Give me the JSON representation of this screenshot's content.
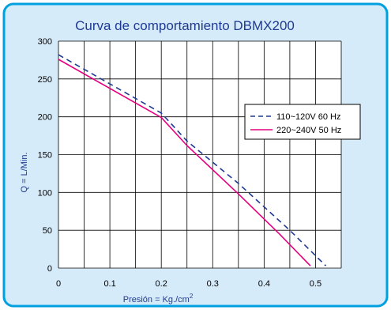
{
  "chart_data": {
    "type": "line",
    "title": "Curva de comportamiento DBMX200",
    "xlabel": "Presión = Kg./cm",
    "xlabel_sup": "2",
    "ylabel": "Q = L/Min.",
    "xlim": [
      0,
      0.55
    ],
    "ylim": [
      0,
      300
    ],
    "x_ticks": [
      "0",
      "0.1",
      "0.2",
      "0.3",
      "0.4",
      "0.5"
    ],
    "y_ticks": [
      "0",
      "50",
      "100",
      "150",
      "200",
      "250",
      "300"
    ],
    "grid": true,
    "legend_position": "right",
    "series": [
      {
        "name": "110~120V 60 Hz",
        "style": "dashed",
        "color": "#1f3a93",
        "points": [
          [
            0,
            282
          ],
          [
            0.2,
            205
          ],
          [
            0.25,
            168
          ],
          [
            0.35,
            112
          ],
          [
            0.45,
            50
          ],
          [
            0.52,
            3
          ]
        ]
      },
      {
        "name": "220~240V 50 Hz",
        "style": "solid",
        "color": "#e6007e",
        "points": [
          [
            0,
            276
          ],
          [
            0.2,
            199
          ],
          [
            0.25,
            162
          ],
          [
            0.35,
            98
          ],
          [
            0.43,
            45
          ],
          [
            0.49,
            3
          ]
        ]
      }
    ]
  },
  "colors": {
    "frame_bg": "#d6ebfa",
    "frame_border": "#00a0e0",
    "title_color": "#1f3a93",
    "grid": "#000000"
  }
}
